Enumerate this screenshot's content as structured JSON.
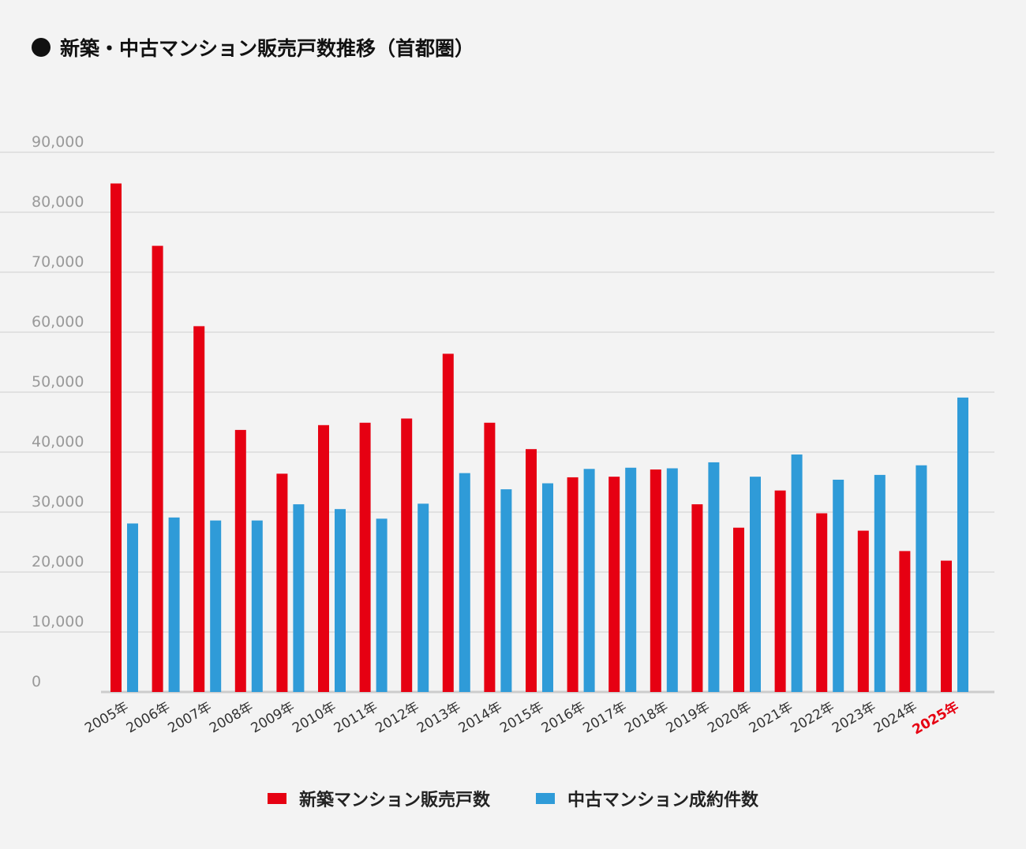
{
  "title": "新築・中古マンション販売戸数推移（首都圏）",
  "colors": {
    "new": "#e60012",
    "used": "#2f9bd8",
    "highlight": "#e60012",
    "grid": "#d6d6d6",
    "axis_text": "#999999"
  },
  "legend": {
    "new_label": "新築マンション販売戸数",
    "used_label": "中古マンション成約件数"
  },
  "chart_data": {
    "type": "bar",
    "title": "新築・中古マンション販売戸数推移（首都圏）",
    "categories": [
      "2005年",
      "2006年",
      "2007年",
      "2008年",
      "2009年",
      "2010年",
      "2011年",
      "2012年",
      "2013年",
      "2014年",
      "2015年",
      "2016年",
      "2017年",
      "2018年",
      "2019年",
      "2020年",
      "2021年",
      "2022年",
      "2023年",
      "2024年",
      "2025年"
    ],
    "highlight_category": "2025年",
    "series": [
      {
        "name": "新築マンション販売戸数",
        "values": [
          84800,
          74400,
          61000,
          43700,
          36400,
          44500,
          44900,
          45600,
          56400,
          44900,
          40500,
          35800,
          35900,
          37100,
          31300,
          27400,
          33600,
          29800,
          26900,
          23500,
          21900
        ]
      },
      {
        "name": "中古マンション成約件数",
        "values": [
          28100,
          29100,
          28600,
          28600,
          31300,
          30500,
          28900,
          31400,
          36500,
          33800,
          34800,
          37200,
          37400,
          37300,
          38300,
          35900,
          39600,
          35400,
          36200,
          37800,
          49100
        ]
      }
    ],
    "ylim": [
      0,
      90000
    ],
    "yticks": [
      "0",
      "10,000",
      "20,000",
      "30,000",
      "40,000",
      "50,000",
      "60,000",
      "70,000",
      "80,000",
      "90,000"
    ],
    "grid": true,
    "legend_position": "bottom-center"
  }
}
